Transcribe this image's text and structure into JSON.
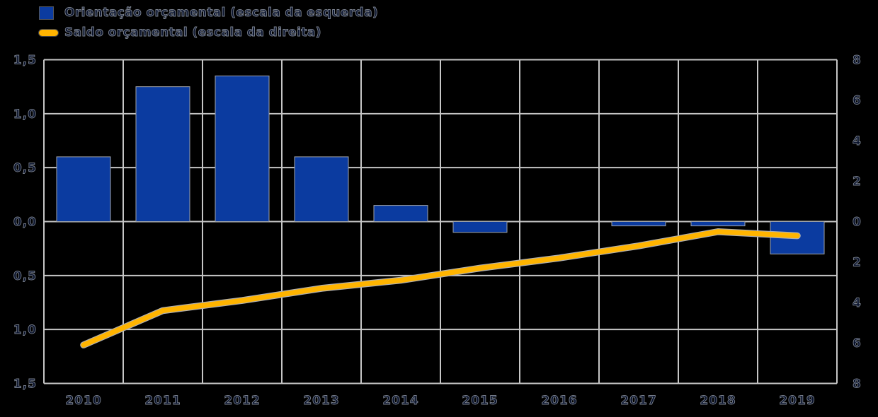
{
  "colors": {
    "background": "#000000",
    "bar": "#0b3ba0",
    "bar_border": "#a0a4aa",
    "line": "#ffb400",
    "line_halo": "#b0b0b0",
    "grid": "#c6c6c6",
    "text_fill": "#09122e",
    "text_stroke": "#8f96a3"
  },
  "legend": {
    "items": [
      {
        "label": "Orientação orçamental (escala da esquerda)",
        "marker": "square",
        "color": "#0b3ba0"
      },
      {
        "label": "Saldo orçamental (escala da direita)",
        "marker": "line",
        "color": "#ffb400"
      }
    ]
  },
  "chart_data": {
    "type": "bar",
    "subtype": "bar+line-combo-dual-axis",
    "title": "",
    "xlabel": "",
    "ylabel": "",
    "grid": true,
    "legend_position": "top-left",
    "categories": [
      "2010",
      "2011",
      "2012",
      "2013",
      "2014",
      "2015",
      "2016",
      "2017",
      "2018",
      "2019"
    ],
    "series": [
      {
        "name": "Orientação orçamental (escala da esquerda)",
        "type": "bar",
        "axis": "left",
        "color": "#0b3ba0",
        "values": [
          0.6,
          1.25,
          1.35,
          0.6,
          0.15,
          -0.1,
          0.0,
          -0.04,
          -0.04,
          -0.3
        ]
      },
      {
        "name": "Saldo orçamental (escala da direita)",
        "type": "line",
        "axis": "right",
        "color": "#ffb400",
        "values": [
          -6.1,
          -4.4,
          -3.9,
          -3.3,
          -2.9,
          -2.3,
          -1.8,
          -1.2,
          -0.5,
          -0.7
        ]
      }
    ],
    "left_axis": {
      "min": -1.5,
      "max": 1.5,
      "tick_values": [
        1.5,
        1.0,
        0.5,
        0.0,
        -0.5,
        -1.0,
        -1.5
      ],
      "tick_labels": [
        "1,5",
        "1,0",
        "0,5",
        "0,0",
        "0,5",
        "1,0",
        "1,5"
      ]
    },
    "right_axis": {
      "min": -8,
      "max": 8,
      "tick_values": [
        8,
        6,
        4,
        2,
        0,
        -2,
        -4,
        -6,
        -8
      ],
      "tick_labels": [
        "8",
        "6",
        "4",
        "2",
        "0",
        "2",
        "4",
        "6",
        "8"
      ]
    }
  }
}
